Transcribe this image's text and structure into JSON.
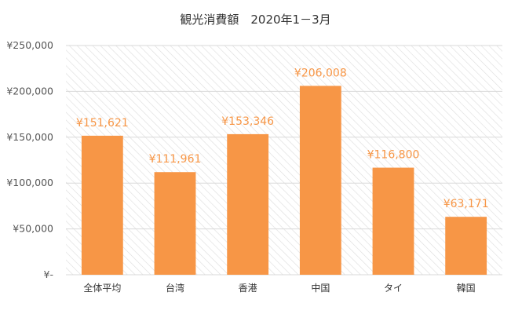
{
  "chart_data": {
    "type": "bar",
    "title": "観光消費額　2020年1－3月",
    "categories": [
      "全体平均",
      "台湾",
      "香港",
      "中国",
      "タイ",
      "韓国"
    ],
    "values": [
      151621,
      111961,
      153346,
      206008,
      116800,
      63171
    ],
    "data_labels": [
      "¥151,621",
      "¥111,961",
      "¥153,346",
      "¥206,008",
      "¥116,800",
      "¥63,171"
    ],
    "y_ticks": [
      {
        "value": 0,
        "label": "¥-"
      },
      {
        "value": 50000,
        "label": "¥50,000"
      },
      {
        "value": 100000,
        "label": "¥100,000"
      },
      {
        "value": 150000,
        "label": "¥150,000"
      },
      {
        "value": 200000,
        "label": "¥200,000"
      },
      {
        "value": 250000,
        "label": "¥250,000"
      }
    ],
    "ylim": [
      0,
      250000
    ],
    "xlabel": "",
    "ylabel": "",
    "grid": true,
    "legend": "none",
    "colors": {
      "bar": "#F79646",
      "label": "#F79646",
      "grid": "#d9d9d9",
      "hatch": "#dcdcdc"
    }
  }
}
